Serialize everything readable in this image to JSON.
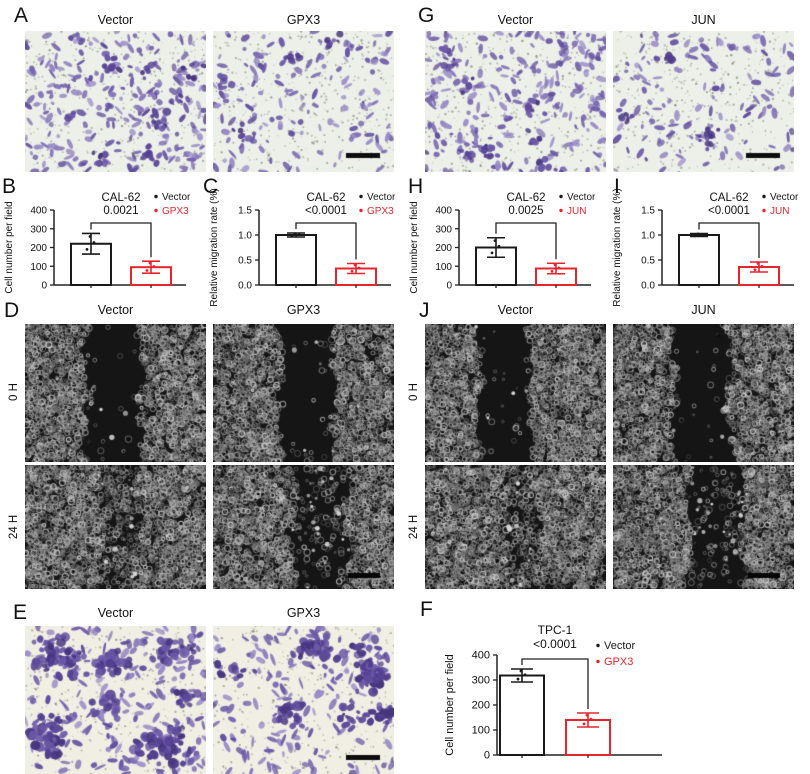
{
  "figure": {
    "panels": {
      "A": {
        "label": "A",
        "cols": [
          "Vector",
          "GPX3"
        ]
      },
      "B": {
        "label": "B"
      },
      "C": {
        "label": "C"
      },
      "D": {
        "label": "D",
        "cols": [
          "Vector",
          "GPX3"
        ],
        "rows": [
          "0 H",
          "24 H"
        ]
      },
      "E": {
        "label": "E",
        "cols": [
          "Vector",
          "GPX3"
        ]
      },
      "F": {
        "label": "F"
      },
      "G": {
        "label": "G",
        "cols": [
          "Vector",
          "JUN"
        ]
      },
      "H": {
        "label": "H"
      },
      "I": {
        "label": "I"
      },
      "J": {
        "label": "J",
        "cols": [
          "Vector",
          "JUN"
        ],
        "rows": [
          "0 H",
          "24 H"
        ]
      }
    }
  },
  "colors": {
    "control": "#1a1a1a",
    "overexpression": "#e8242c",
    "axis": "#222222"
  },
  "chart_data": [
    {
      "id": "chB",
      "panel": "B",
      "type": "bar",
      "title": "CAL-62",
      "p_value": "0.0021",
      "ylabel": "Cell number per field",
      "ylim": [
        0,
        400
      ],
      "yticks": [
        "0",
        "100",
        "200",
        "300",
        "400"
      ],
      "categories": [
        "Vector",
        "GPX3"
      ],
      "series": [
        {
          "name": "Vector",
          "value": 220,
          "error": 55,
          "color": "#1a1a1a"
        },
        {
          "name": "GPX3",
          "value": 95,
          "error": 32,
          "color": "#e8242c"
        }
      ],
      "legend_position": "top-right",
      "grid": false
    },
    {
      "id": "chC",
      "panel": "C",
      "type": "bar",
      "title": "CAL-62",
      "p_value": "<0.0001",
      "ylabel": "Relative migration rate (%)",
      "ylim": [
        0,
        1.5
      ],
      "yticks": [
        "0.0",
        "0.5",
        "1.0",
        "1.5"
      ],
      "categories": [
        "Vector",
        "GPX3"
      ],
      "series": [
        {
          "name": "Vector",
          "value": 1.0,
          "error": 0.04,
          "color": "#1a1a1a"
        },
        {
          "name": "GPX3",
          "value": 0.33,
          "error": 0.1,
          "color": "#e8242c"
        }
      ],
      "legend_position": "top-right",
      "grid": false
    },
    {
      "id": "chH",
      "panel": "H",
      "type": "bar",
      "title": "CAL-62",
      "p_value": "0.0025",
      "ylabel": "Cell number per field",
      "ylim": [
        0,
        400
      ],
      "yticks": [
        "0",
        "100",
        "200",
        "300",
        "400"
      ],
      "categories": [
        "Vector",
        "JUN"
      ],
      "series": [
        {
          "name": "Vector",
          "value": 200,
          "error": 52,
          "color": "#1a1a1a"
        },
        {
          "name": "JUN",
          "value": 88,
          "error": 28,
          "color": "#e8242c"
        }
      ],
      "legend_position": "top-right",
      "grid": false
    },
    {
      "id": "chI",
      "panel": "I",
      "type": "bar",
      "title": "CAL-62",
      "p_value": "<0.0001",
      "ylabel": "Relative migration rate (%)",
      "ylim": [
        0,
        1.5
      ],
      "yticks": [
        "0.0",
        "0.5",
        "1.0",
        "1.5"
      ],
      "categories": [
        "Vector",
        "JUN"
      ],
      "series": [
        {
          "name": "Vector",
          "value": 1.0,
          "error": 0.03,
          "color": "#1a1a1a"
        },
        {
          "name": "JUN",
          "value": 0.36,
          "error": 0.1,
          "color": "#e8242c"
        }
      ],
      "legend_position": "top-right",
      "grid": false
    },
    {
      "id": "chF",
      "panel": "F",
      "type": "bar",
      "title": "TPC-1",
      "p_value": "<0.0001",
      "ylabel": "Cell number per field",
      "ylim": [
        0,
        400
      ],
      "yticks": [
        "0",
        "100",
        "200",
        "300",
        "400"
      ],
      "categories": [
        "Vector",
        "GPX3"
      ],
      "series": [
        {
          "name": "Vector",
          "value": 318,
          "error": 26,
          "color": "#1a1a1a"
        },
        {
          "name": "GPX3",
          "value": 140,
          "error": 28,
          "color": "#e8242c"
        }
      ],
      "legend_position": "top-right",
      "grid": false
    }
  ],
  "micrographs": {
    "mgA1": {
      "kind": "transwell",
      "seed": 11,
      "cells": 240,
      "clusters": 7,
      "cluster_size": 6,
      "spread": 13,
      "pores": 430,
      "bg": "#edf0e8"
    },
    "mgA2": {
      "kind": "transwell",
      "seed": 22,
      "cells": 140,
      "clusters": 4,
      "cluster_size": 5,
      "spread": 12,
      "pores": 430,
      "bg": "#edf0e8",
      "scalebar": true
    },
    "mgG1": {
      "kind": "transwell",
      "seed": 33,
      "cells": 230,
      "clusters": 7,
      "cluster_size": 6,
      "spread": 13,
      "pores": 430,
      "bg": "#edf0e8"
    },
    "mgG2": {
      "kind": "transwell",
      "seed": 44,
      "cells": 135,
      "clusters": 4,
      "cluster_size": 5,
      "spread": 12,
      "pores": 430,
      "bg": "#edf0e8",
      "scalebar": true
    },
    "mgE1": {
      "kind": "transwell",
      "seed": 55,
      "cells": 200,
      "clusters": 16,
      "cluster_size": 14,
      "spread": 20,
      "pores": 380,
      "bg": "#f1eee4",
      "big": true
    },
    "mgE2": {
      "kind": "transwell",
      "seed": 66,
      "cells": 160,
      "clusters": 12,
      "cluster_size": 11,
      "spread": 19,
      "pores": 380,
      "bg": "#f1eee4",
      "big": true,
      "scalebar": true
    },
    "mgD0v": {
      "kind": "wound",
      "seed": 77,
      "gap": [
        0.34,
        0.64
      ],
      "inside": 0.02,
      "texture": 3000
    },
    "mgD0g": {
      "kind": "wound",
      "seed": 88,
      "gap": [
        0.37,
        0.67
      ],
      "inside": 0.02,
      "texture": 3000
    },
    "mgD24v": {
      "kind": "wound",
      "seed": 99,
      "gap": [
        0.4,
        0.63
      ],
      "inside": 0.5,
      "texture": 2800,
      "bright": 8
    },
    "mgD24g": {
      "kind": "wound",
      "seed": 111,
      "gap": [
        0.44,
        0.74
      ],
      "inside": 0.14,
      "texture": 2800,
      "bright": 20,
      "scalebar": true
    },
    "mgJ0v": {
      "kind": "wound",
      "seed": 122,
      "gap": [
        0.3,
        0.58
      ],
      "inside": 0.02,
      "texture": 3000
    },
    "mgJ0j": {
      "kind": "wound",
      "seed": 133,
      "gap": [
        0.34,
        0.64
      ],
      "inside": 0.02,
      "texture": 3000
    },
    "mgJ24v": {
      "kind": "wound",
      "seed": 144,
      "gap": [
        0.44,
        0.62
      ],
      "inside": 0.5,
      "texture": 2800,
      "bright": 10
    },
    "mgJ24j": {
      "kind": "wound",
      "seed": 155,
      "gap": [
        0.42,
        0.72
      ],
      "inside": 0.16,
      "texture": 2800,
      "bright": 18,
      "scalebar": true
    }
  }
}
